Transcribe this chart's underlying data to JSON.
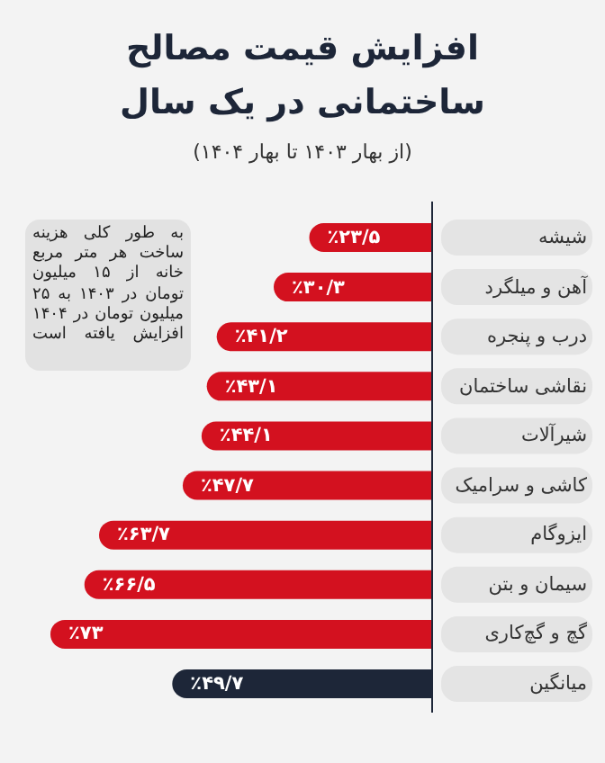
{
  "chart_data": {
    "type": "bar",
    "orientation": "horizontal",
    "title": "افزایش قیمت مصالح ساختمانی در یک سال",
    "subtitle": "(از بهار ۱۴۰۳ تا بهار ۱۴۰۴)",
    "categories": [
      "شیشه",
      "آهن و میلگرد",
      "درب و پنجره",
      "نقاشی ساختمان",
      "شیرآلات",
      "کاشی و سرامیک",
      "ایزوگام",
      "سیمان و بتن",
      "گچ و گچ‌کاری",
      "میانگین"
    ],
    "values": [
      23.5,
      30.3,
      41.2,
      43.1,
      44.1,
      47.7,
      63.7,
      66.5,
      73,
      49.7
    ],
    "value_labels": [
      "٪۲۳/۵",
      "٪۳۰/۳",
      "٪۴۱/۲",
      "٪۴۳/۱",
      "٪۴۴/۱",
      "٪۴۷/۷",
      "٪۶۳/۷",
      "٪۶۶/۵",
      "٪۷۳",
      "٪۴۹/۷"
    ],
    "colors": [
      "#d3111f",
      "#d3111f",
      "#d3111f",
      "#d3111f",
      "#d3111f",
      "#d3111f",
      "#d3111f",
      "#d3111f",
      "#d3111f",
      "#1d2638"
    ],
    "annotations": [
      "به طور کلی هزینه ساخت هر متر مربع خانه از ۱۵ میلیون تومان در ۱۴۰۳ به ۲۵ میلیون تومان در ۱۴۰۴ افزایش یافته است"
    ]
  }
}
